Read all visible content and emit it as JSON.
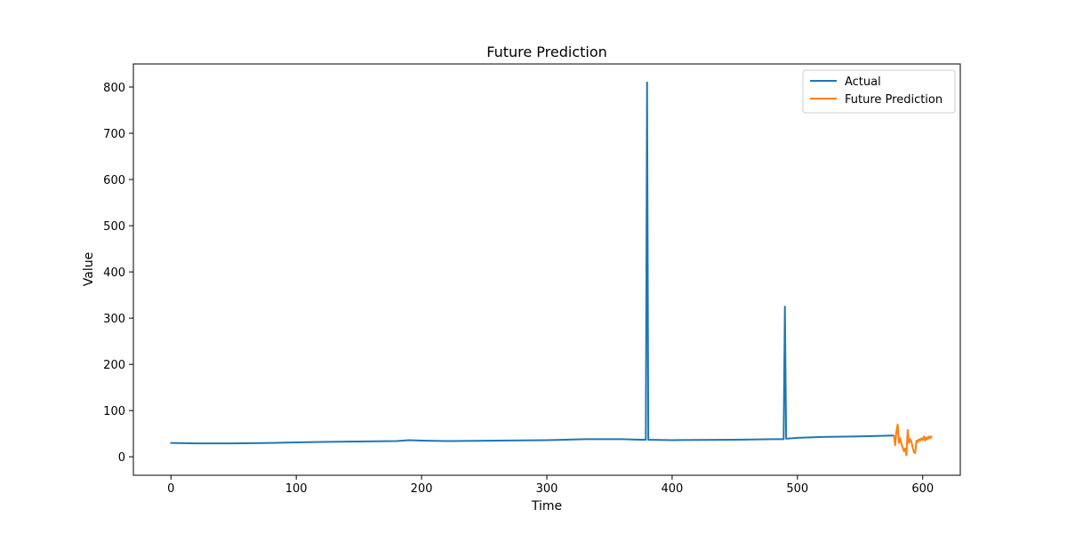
{
  "chart_data": {
    "type": "line",
    "title": "Future Prediction",
    "xlabel": "Time",
    "ylabel": "Value",
    "xlim": [
      -30,
      630
    ],
    "ylim": [
      -40,
      850
    ],
    "xticks": [
      0,
      100,
      200,
      300,
      400,
      500,
      600
    ],
    "yticks": [
      0,
      100,
      200,
      300,
      400,
      500,
      600,
      700,
      800
    ],
    "grid": false,
    "legend_position": "top-right",
    "series": [
      {
        "name": "Actual",
        "color": "#1f77b4",
        "points": [
          [
            0,
            30
          ],
          [
            20,
            29
          ],
          [
            50,
            29
          ],
          [
            80,
            30
          ],
          [
            100,
            31
          ],
          [
            120,
            32
          ],
          [
            150,
            33
          ],
          [
            180,
            34
          ],
          [
            190,
            36
          ],
          [
            200,
            35
          ],
          [
            220,
            34
          ],
          [
            260,
            35
          ],
          [
            300,
            36
          ],
          [
            330,
            38
          ],
          [
            360,
            38
          ],
          [
            375,
            37
          ],
          [
            379,
            37
          ],
          [
            380,
            810
          ],
          [
            381,
            37
          ],
          [
            400,
            36
          ],
          [
            450,
            37
          ],
          [
            480,
            38
          ],
          [
            489,
            38
          ],
          [
            490,
            325
          ],
          [
            491,
            39
          ],
          [
            500,
            41
          ],
          [
            520,
            43
          ],
          [
            550,
            44
          ],
          [
            577,
            46
          ]
        ]
      },
      {
        "name": "Future Prediction",
        "color": "#ff7f0e",
        "points": [
          [
            577,
            46
          ],
          [
            578,
            25
          ],
          [
            579,
            55
          ],
          [
            580,
            70
          ],
          [
            581,
            30
          ],
          [
            582,
            40
          ],
          [
            583,
            28
          ],
          [
            584,
            20
          ],
          [
            585,
            12
          ],
          [
            586,
            18
          ],
          [
            587,
            3
          ],
          [
            588,
            58
          ],
          [
            589,
            30
          ],
          [
            590,
            38
          ],
          [
            591,
            32
          ],
          [
            592,
            20
          ],
          [
            593,
            10
          ],
          [
            594,
            8
          ],
          [
            595,
            35
          ],
          [
            596,
            32
          ],
          [
            597,
            38
          ],
          [
            598,
            35
          ],
          [
            599,
            40
          ],
          [
            600,
            36
          ],
          [
            601,
            44
          ],
          [
            602,
            35
          ],
          [
            603,
            42
          ],
          [
            604,
            38
          ],
          [
            605,
            44
          ],
          [
            606,
            40
          ],
          [
            607,
            44
          ]
        ]
      }
    ]
  }
}
